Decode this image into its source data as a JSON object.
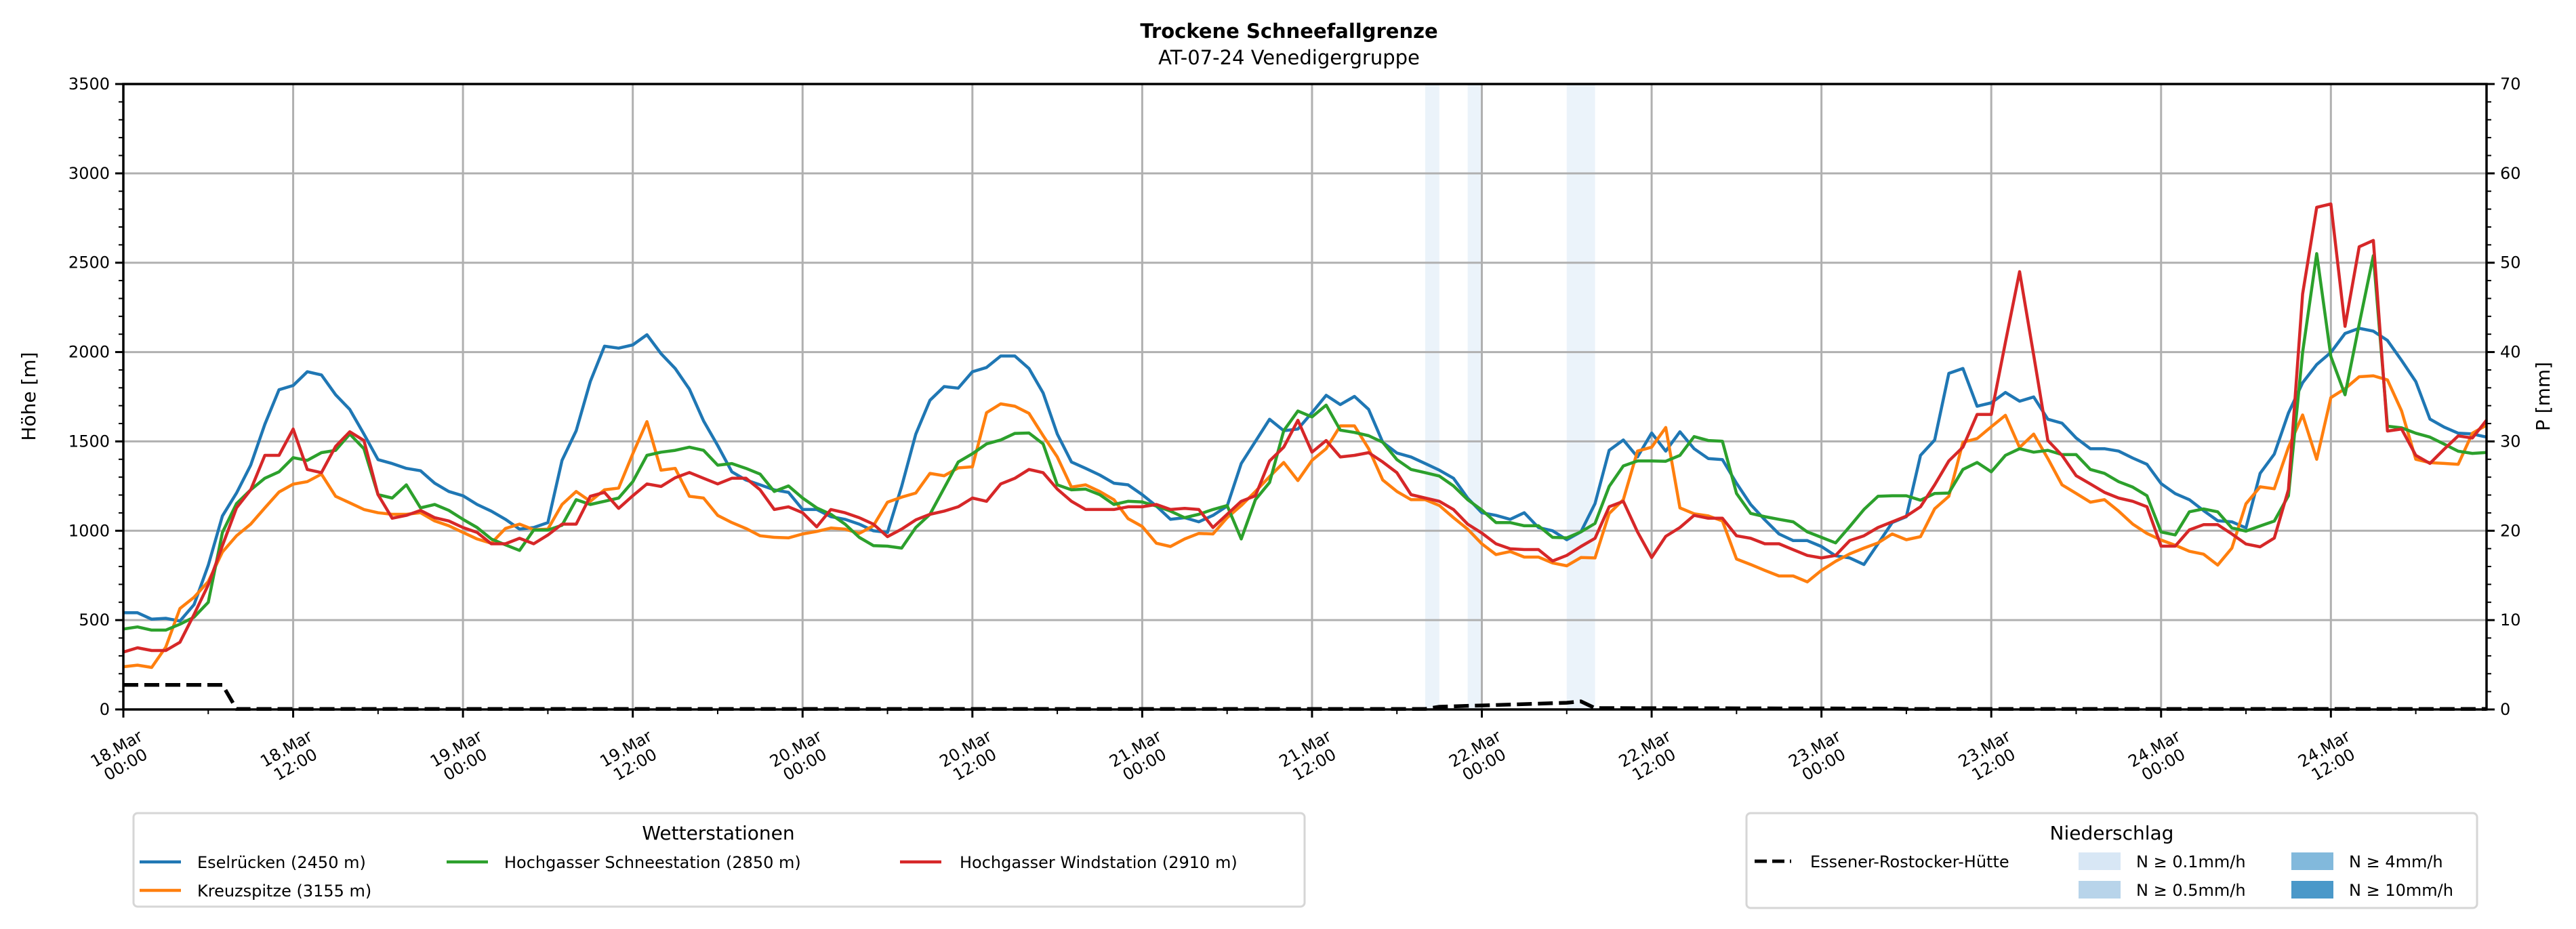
{
  "chart_data": {
    "type": "line",
    "title": "Trockene Schneefallgrenze",
    "subtitle": "AT-07-24 Venedigergruppe",
    "ylabel": "Höhe [m]",
    "ylabel_right": "P [mm]",
    "ylim": [
      0,
      3500
    ],
    "ylim_right": [
      0,
      70
    ],
    "yticks": [
      0,
      500,
      1000,
      1500,
      2000,
      2500,
      3000,
      3500
    ],
    "yticks_right": [
      0,
      10,
      20,
      30,
      40,
      50,
      60,
      70
    ],
    "x_unit": "hours since 18.Mar 00:00",
    "xlim": [
      0,
      167
    ],
    "xticks": [
      {
        "hour": 0,
        "date": "18.Mar",
        "time": "00:00"
      },
      {
        "hour": 12,
        "date": "18.Mar",
        "time": "12:00"
      },
      {
        "hour": 24,
        "date": "19.Mar",
        "time": "00:00"
      },
      {
        "hour": 36,
        "date": "19.Mar",
        "time": "12:00"
      },
      {
        "hour": 48,
        "date": "20.Mar",
        "time": "00:00"
      },
      {
        "hour": 60,
        "date": "20.Mar",
        "time": "12:00"
      },
      {
        "hour": 72,
        "date": "21.Mar",
        "time": "00:00"
      },
      {
        "hour": 84,
        "date": "21.Mar",
        "time": "12:00"
      },
      {
        "hour": 96,
        "date": "22.Mar",
        "time": "00:00"
      },
      {
        "hour": 108,
        "date": "22.Mar",
        "time": "12:00"
      },
      {
        "hour": 120,
        "date": "23.Mar",
        "time": "00:00"
      },
      {
        "hour": 132,
        "date": "23.Mar",
        "time": "12:00"
      },
      {
        "hour": 144,
        "date": "24.Mar",
        "time": "00:00"
      },
      {
        "hour": 156,
        "date": "24.Mar",
        "time": "12:00"
      }
    ],
    "grid": true,
    "series": [
      {
        "name": "Eselrücken (2450 m)",
        "color": "#1f77b4",
        "values": [
          541,
          541,
          505,
          510,
          495,
          587,
          807,
          1083,
          1211,
          1367,
          1596,
          1789,
          1813,
          1890,
          1872,
          1761,
          1679,
          1541,
          1398,
          1376,
          1349,
          1336,
          1266,
          1220,
          1196,
          1147,
          1110,
          1064,
          1009,
          1018,
          1046,
          1394,
          1560,
          1835,
          2033,
          2022,
          2040,
          2097,
          1991,
          1908,
          1793,
          1615,
          1477,
          1330,
          1284,
          1257,
          1229,
          1215,
          1119,
          1119,
          1079,
          1064,
          1037,
          1000,
          991,
          1248,
          1541,
          1730,
          1807,
          1798,
          1890,
          1914,
          1978,
          1978,
          1908,
          1771,
          1541,
          1385,
          1349,
          1312,
          1266,
          1257,
          1202,
          1138,
          1064,
          1073,
          1050,
          1086,
          1138,
          1376,
          1500,
          1624,
          1560,
          1569,
          1661,
          1758,
          1706,
          1752,
          1679,
          1495,
          1435,
          1413,
          1376,
          1339,
          1294,
          1183,
          1101,
          1086,
          1064,
          1101,
          1018,
          1000,
          950,
          994,
          1152,
          1450,
          1508,
          1413,
          1547,
          1446,
          1554,
          1459,
          1404,
          1398,
          1266,
          1147,
          1061,
          982,
          945,
          945,
          912,
          860,
          848,
          811,
          927,
          1046,
          1079,
          1422,
          1508,
          1881,
          1908,
          1697,
          1716,
          1774,
          1725,
          1749,
          1624,
          1602,
          1519,
          1459,
          1459,
          1446,
          1407,
          1372,
          1264,
          1208,
          1174,
          1113,
          1056,
          1050,
          1016,
          1321,
          1429,
          1659,
          1828,
          1930,
          1998,
          2104,
          2133,
          2117,
          2065,
          1953,
          1835,
          1625,
          1580,
          1546,
          1542,
          1524
        ]
      },
      {
        "name": "Kreuzspitze (3155 m)",
        "color": "#ff7f0e",
        "values": [
          239,
          248,
          235,
          349,
          565,
          628,
          716,
          881,
          972,
          1037,
          1128,
          1217,
          1261,
          1275,
          1317,
          1193,
          1156,
          1119,
          1101,
          1092,
          1092,
          1101,
          1055,
          1028,
          991,
          954,
          930,
          1013,
          1037,
          1006,
          1009,
          1147,
          1220,
          1165,
          1229,
          1239,
          1431,
          1611,
          1339,
          1349,
          1193,
          1183,
          1086,
          1046,
          1013,
          972,
          963,
          960,
          982,
          996,
          1015,
          1009,
          985,
          1028,
          1160,
          1188,
          1211,
          1321,
          1308,
          1352,
          1358,
          1661,
          1710,
          1697,
          1657,
          1532,
          1413,
          1244,
          1257,
          1220,
          1174,
          1068,
          1024,
          930,
          912,
          954,
          985,
          982,
          1073,
          1141,
          1220,
          1303,
          1382,
          1281,
          1394,
          1459,
          1587,
          1587,
          1459,
          1284,
          1220,
          1174,
          1174,
          1141,
          1073,
          1009,
          927,
          867,
          884,
          853,
          853,
          820,
          804,
          850,
          848,
          1097,
          1174,
          1446,
          1468,
          1578,
          1128,
          1095,
          1083,
          1055,
          842,
          811,
          778,
          747,
          747,
          714,
          778,
          829,
          871,
          903,
          932,
          982,
          950,
          967,
          1123,
          1193,
          1495,
          1516,
          1582,
          1646,
          1466,
          1541,
          1404,
          1257,
          1209,
          1160,
          1174,
          1110,
          1037,
          985,
          948,
          919,
          885,
          869,
          808,
          903,
          1151,
          1246,
          1235,
          1467,
          1648,
          1400,
          1745,
          1795,
          1862,
          1867,
          1844,
          1670,
          1400,
          1381,
          1377,
          1372,
          1546,
          1591
        ]
      },
      {
        "name": "Hochgasser Schneestation (2850 m)",
        "color": "#2ca02c",
        "values": [
          450,
          462,
          444,
          444,
          477,
          517,
          600,
          991,
          1152,
          1229,
          1294,
          1330,
          1409,
          1394,
          1437,
          1450,
          1541,
          1459,
          1202,
          1183,
          1257,
          1128,
          1147,
          1114,
          1064,
          1018,
          954,
          921,
          890,
          1004,
          1004,
          1031,
          1174,
          1147,
          1165,
          1183,
          1275,
          1422,
          1440,
          1450,
          1468,
          1450,
          1367,
          1376,
          1349,
          1317,
          1220,
          1251,
          1183,
          1128,
          1092,
          1037,
          963,
          917,
          914,
          903,
          1018,
          1092,
          1239,
          1385,
          1431,
          1486,
          1508,
          1545,
          1547,
          1486,
          1257,
          1229,
          1233,
          1202,
          1147,
          1165,
          1161,
          1138,
          1110,
          1073,
          1092,
          1119,
          1141,
          954,
          1174,
          1270,
          1560,
          1670,
          1637,
          1703,
          1563,
          1550,
          1532,
          1495,
          1398,
          1343,
          1325,
          1306,
          1251,
          1174,
          1116,
          1046,
          1046,
          1028,
          1028,
          963,
          960,
          994,
          1041,
          1248,
          1363,
          1391,
          1391,
          1389,
          1422,
          1527,
          1505,
          1501,
          1209,
          1097,
          1079,
          1064,
          1050,
          994,
          963,
          932,
          1024,
          1119,
          1193,
          1196,
          1196,
          1171,
          1209,
          1211,
          1343,
          1382,
          1330,
          1422,
          1459,
          1440,
          1450,
          1426,
          1426,
          1343,
          1321,
          1275,
          1244,
          1196,
          993,
          977,
          1106,
          1122,
          1106,
          1016,
          998,
          1027,
          1054,
          1196,
          1998,
          2551,
          1975,
          1761,
          2156,
          2540,
          1585,
          1576,
          1546,
          1524,
          1485,
          1445,
          1433,
          1438
        ]
      },
      {
        "name": "Hochgasser Windstation (2910 m)",
        "color": "#d62728",
        "values": [
          321,
          345,
          330,
          330,
          376,
          532,
          697,
          917,
          1128,
          1229,
          1422,
          1422,
          1569,
          1343,
          1325,
          1472,
          1554,
          1505,
          1202,
          1070,
          1086,
          1114,
          1073,
          1055,
          1018,
          991,
          927,
          927,
          958,
          927,
          976,
          1037,
          1037,
          1193,
          1215,
          1125,
          1196,
          1262,
          1248,
          1297,
          1326,
          1294,
          1262,
          1294,
          1294,
          1229,
          1119,
          1134,
          1101,
          1022,
          1119,
          1101,
          1073,
          1037,
          967,
          1009,
          1061,
          1092,
          1110,
          1134,
          1183,
          1165,
          1262,
          1294,
          1343,
          1325,
          1233,
          1165,
          1119,
          1119,
          1119,
          1134,
          1134,
          1147,
          1119,
          1125,
          1119,
          1018,
          1092,
          1165,
          1196,
          1391,
          1468,
          1618,
          1440,
          1505,
          1413,
          1422,
          1437,
          1385,
          1325,
          1202,
          1183,
          1165,
          1119,
          1037,
          987,
          927,
          899,
          895,
          895,
          831,
          862,
          912,
          958,
          1134,
          1165,
          994,
          850,
          969,
          1018,
          1086,
          1070,
          1070,
          972,
          958,
          927,
          927,
          894,
          862,
          848,
          862,
          945,
          972,
          1018,
          1050,
          1082,
          1134,
          1257,
          1391,
          1468,
          1651,
          1651,
          2055,
          2450,
          1982,
          1505,
          1422,
          1308,
          1262,
          1215,
          1183,
          1165,
          1134,
          914,
          914,
          1005,
          1034,
          1034,
          982,
          926,
          910,
          959,
          1230,
          2325,
          2810,
          2829,
          2144,
          2589,
          2625,
          1558,
          1569,
          1422,
          1377,
          1456,
          1531,
          1519,
          1619
        ]
      }
    ],
    "precip_series": {
      "name": "Essener-Rostocker-Hütte",
      "color": "#000000",
      "points": [
        [
          0,
          2.75
        ],
        [
          7,
          2.75
        ],
        [
          8,
          0.05
        ],
        [
          92,
          0.05
        ],
        [
          93,
          0.3
        ],
        [
          96,
          0.45
        ],
        [
          102,
          0.75
        ],
        [
          103,
          0.9
        ],
        [
          104,
          0.15
        ],
        [
          125,
          0.1
        ],
        [
          126,
          0.05
        ],
        [
          167,
          0.05
        ]
      ]
    },
    "precip_bands": [
      {
        "start": 92,
        "end": 93,
        "class": 0
      },
      {
        "start": 95,
        "end": 96,
        "class": 0
      },
      {
        "start": 102,
        "end": 104,
        "class": 0
      }
    ],
    "legend_stations": {
      "title": "Wetterstationen",
      "placement": "below-left"
    },
    "legend_precip": {
      "title": "Niederschlag",
      "placement": "below-right",
      "classes": [
        {
          "label": "N ≥ 0.1mm/h",
          "color": "#d8e7f5"
        },
        {
          "label": "N ≥ 0.5mm/h",
          "color": "#b8d4ea"
        },
        {
          "label": "N ≥ 4mm/h",
          "color": "#82b9dc"
        },
        {
          "label": "N ≥ 10mm/h",
          "color": "#4a98c9"
        }
      ]
    }
  }
}
